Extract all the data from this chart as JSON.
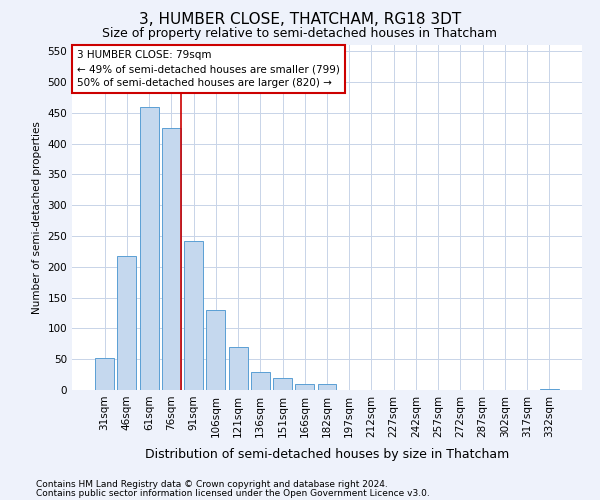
{
  "title": "3, HUMBER CLOSE, THATCHAM, RG18 3DT",
  "subtitle": "Size of property relative to semi-detached houses in Thatcham",
  "xlabel": "Distribution of semi-detached houses by size in Thatcham",
  "ylabel": "Number of semi-detached properties",
  "categories": [
    "31sqm",
    "46sqm",
    "61sqm",
    "76sqm",
    "91sqm",
    "106sqm",
    "121sqm",
    "136sqm",
    "151sqm",
    "166sqm",
    "182sqm",
    "197sqm",
    "212sqm",
    "227sqm",
    "242sqm",
    "257sqm",
    "272sqm",
    "287sqm",
    "302sqm",
    "317sqm",
    "332sqm"
  ],
  "values": [
    52,
    218,
    460,
    425,
    242,
    130,
    70,
    30,
    19,
    9,
    10,
    0,
    0,
    0,
    0,
    0,
    0,
    0,
    0,
    0,
    2
  ],
  "bar_color": "#c5d8ee",
  "bar_edge_color": "#5a9fd4",
  "annotation_line0": "3 HUMBER CLOSE: 79sqm",
  "annotation_line1": "← 49% of semi-detached houses are smaller (799)",
  "annotation_line2": "50% of semi-detached houses are larger (820) →",
  "ylim": [
    0,
    560
  ],
  "yticks": [
    0,
    50,
    100,
    150,
    200,
    250,
    300,
    350,
    400,
    450,
    500,
    550
  ],
  "footer1": "Contains HM Land Registry data © Crown copyright and database right 2024.",
  "footer2": "Contains public sector information licensed under the Open Government Licence v3.0.",
  "bg_color": "#eef2fb",
  "plot_bg_color": "#ffffff",
  "annotation_box_color": "#ffffff",
  "annotation_box_edge": "#cc0000",
  "marker_line_color": "#cc0000",
  "grid_color": "#c8d4e8",
  "title_fontsize": 11,
  "subtitle_fontsize": 9,
  "xlabel_fontsize": 9,
  "ylabel_fontsize": 7.5,
  "tick_fontsize": 7.5,
  "footer_fontsize": 6.5
}
